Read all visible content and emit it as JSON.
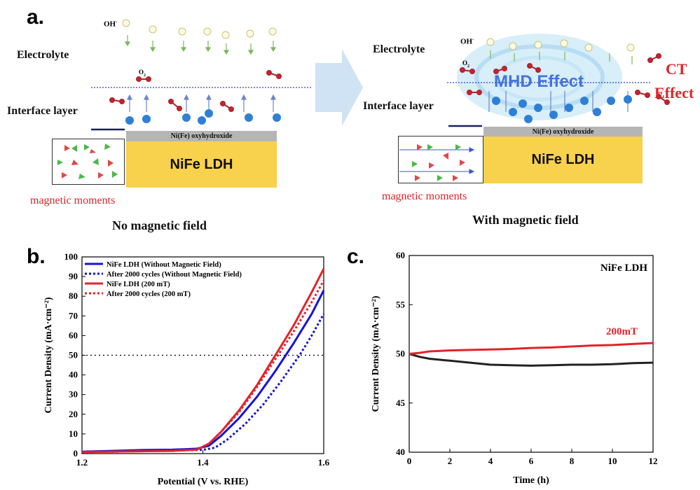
{
  "panel_a": {
    "letter": "a.",
    "left": {
      "electrolyte": "Electrolyte",
      "interface": "Interface layer",
      "oh": "OH",
      "o2": "O",
      "oxyhydroxide": "Ni(Fe) oxyhydroxide",
      "ldh": "NiFe LDH",
      "moments": "magnetic moments",
      "caption": "No magnetic field"
    },
    "right": {
      "electrolyte": "Electrolyte",
      "interface": "Interface layer",
      "oh": "OH",
      "o2": "O",
      "oxyhydroxide": "Ni(Fe) oxyhydroxide",
      "ldh": "NiFe LDH",
      "moments": "magnetic moments",
      "caption": "With magnetic field",
      "mhd": "MHD Effect",
      "ct1": "CT",
      "ct2": "Effect"
    },
    "colors": {
      "ldh": "#f8d14d",
      "oxy": "#b5b5b5",
      "accent_red": "#e0242a",
      "mhd_blue": "#2b5fd9"
    }
  },
  "chart_data": [
    {
      "panel": "b.",
      "type": "line",
      "xlabel": "Potential (V vs. RHE)",
      "ylabel": "Current Density (mA·cm⁻²)",
      "xlim": [
        1.2,
        1.6
      ],
      "ylim": [
        0,
        100
      ],
      "xticks": [
        "1.2",
        "1.4",
        "1.6"
      ],
      "yticks": [
        "0",
        "10",
        "20",
        "30",
        "40",
        "50",
        "60",
        "70",
        "80",
        "90",
        "100"
      ],
      "reference_line": {
        "y": 50,
        "style": "dotted"
      },
      "legend_position": "top-left",
      "series": [
        {
          "name": "NiFe LDH (Without Magnetic Field)",
          "color": "#1414d4",
          "style": "solid",
          "points": [
            [
              1.2,
              1.0
            ],
            [
              1.25,
              1.4
            ],
            [
              1.3,
              1.8
            ],
            [
              1.35,
              2.0
            ],
            [
              1.39,
              2.5
            ],
            [
              1.41,
              4
            ],
            [
              1.43,
              9
            ],
            [
              1.46,
              18
            ],
            [
              1.49,
              29
            ],
            [
              1.52,
              42
            ],
            [
              1.55,
              56
            ],
            [
              1.58,
              71
            ],
            [
              1.6,
              83
            ]
          ]
        },
        {
          "name": "After 2000 cycles (Without Magnetic Field)",
          "color": "#1414d4",
          "style": "dotted",
          "points": [
            [
              1.2,
              0.8
            ],
            [
              1.25,
              1.0
            ],
            [
              1.3,
              1.3
            ],
            [
              1.35,
              1.6
            ],
            [
              1.4,
              1.9
            ],
            [
              1.42,
              3
            ],
            [
              1.44,
              7
            ],
            [
              1.47,
              15
            ],
            [
              1.5,
              25
            ],
            [
              1.53,
              37
            ],
            [
              1.56,
              50
            ],
            [
              1.58,
              60
            ],
            [
              1.6,
              71
            ]
          ]
        },
        {
          "name": "NiFe LDH (200 mT)",
          "color": "#e0242a",
          "style": "solid",
          "points": [
            [
              1.2,
              0.8
            ],
            [
              1.25,
              1.0
            ],
            [
              1.3,
              1.2
            ],
            [
              1.35,
              1.4
            ],
            [
              1.39,
              2.0
            ],
            [
              1.41,
              5
            ],
            [
              1.43,
              11
            ],
            [
              1.46,
              22
            ],
            [
              1.49,
              35
            ],
            [
              1.52,
              50
            ],
            [
              1.55,
              65
            ],
            [
              1.58,
              82
            ],
            [
              1.6,
              94
            ]
          ]
        },
        {
          "name": "After 2000 cycles (200 mT)",
          "color": "#e0242a",
          "style": "dotted",
          "points": [
            [
              1.2,
              0.8
            ],
            [
              1.25,
              1.0
            ],
            [
              1.3,
              1.2
            ],
            [
              1.35,
              1.5
            ],
            [
              1.39,
              2.1
            ],
            [
              1.41,
              5
            ],
            [
              1.43,
              11
            ],
            [
              1.46,
              21
            ],
            [
              1.49,
              34
            ],
            [
              1.52,
              48
            ],
            [
              1.55,
              62
            ],
            [
              1.58,
              77
            ],
            [
              1.6,
              88
            ]
          ]
        }
      ]
    },
    {
      "panel": "c.",
      "type": "line",
      "xlabel": "Time (h)",
      "ylabel": "Current Density (mA·cm⁻²)",
      "xlim": [
        0,
        12
      ],
      "ylim": [
        40,
        60
      ],
      "xticks": [
        "0",
        "2",
        "4",
        "6",
        "8",
        "10",
        "12"
      ],
      "yticks": [
        "40",
        "45",
        "50",
        "55",
        "60"
      ],
      "title_annotation": "NiFe LDH",
      "series_label": "200mT",
      "series": [
        {
          "name": "",
          "color": "#222222",
          "style": "solid",
          "points": [
            [
              0,
              50.0
            ],
            [
              0.5,
              49.7
            ],
            [
              1,
              49.5
            ],
            [
              2,
              49.3
            ],
            [
              3,
              49.1
            ],
            [
              4,
              48.9
            ],
            [
              5,
              48.85
            ],
            [
              6,
              48.8
            ],
            [
              7,
              48.85
            ],
            [
              8,
              48.9
            ],
            [
              9,
              48.9
            ],
            [
              10,
              48.95
            ],
            [
              11,
              49.05
            ],
            [
              12,
              49.1
            ]
          ]
        },
        {
          "name": "200mT",
          "color": "#e0242a",
          "style": "solid",
          "points": [
            [
              0,
              50.0
            ],
            [
              0.5,
              50.1
            ],
            [
              1,
              50.25
            ],
            [
              2,
              50.35
            ],
            [
              3,
              50.4
            ],
            [
              4,
              50.45
            ],
            [
              5,
              50.5
            ],
            [
              6,
              50.6
            ],
            [
              7,
              50.65
            ],
            [
              8,
              50.75
            ],
            [
              9,
              50.85
            ],
            [
              10,
              50.9
            ],
            [
              11,
              51.0
            ],
            [
              12,
              51.1
            ]
          ]
        }
      ]
    }
  ]
}
